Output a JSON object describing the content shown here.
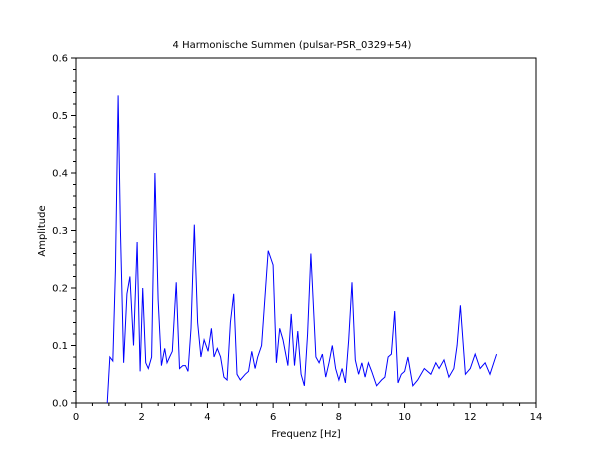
{
  "chart_data": {
    "type": "line",
    "title": "4 Harmonische Summen (pulsar-PSR_0329+54)",
    "xlabel": "Frequenz [Hz]",
    "ylabel": "Amplitude",
    "xlim": [
      0,
      14
    ],
    "ylim": [
      0,
      0.6
    ],
    "xticks": [
      "0",
      "2",
      "4",
      "6",
      "8",
      "10",
      "12",
      "14"
    ],
    "yticks": [
      "0.0",
      "0.1",
      "0.2",
      "0.3",
      "0.4",
      "0.5",
      "0.6"
    ],
    "grid": false,
    "line_color": "#0000ff",
    "series": [
      {
        "x": [
          0.95,
          1.03,
          1.12,
          1.2,
          1.28,
          1.35,
          1.45,
          1.55,
          1.64,
          1.75,
          1.86,
          1.95,
          2.03,
          2.12,
          2.2,
          2.3,
          2.4,
          2.5,
          2.6,
          2.7,
          2.77,
          2.85,
          2.93,
          3.05,
          3.15,
          3.25,
          3.33,
          3.41,
          3.5,
          3.6,
          3.7,
          3.8,
          3.9,
          4.02,
          4.12,
          4.2,
          4.3,
          4.4,
          4.5,
          4.6,
          4.7,
          4.8,
          4.9,
          5.0,
          5.15,
          5.25,
          5.35,
          5.45,
          5.53,
          5.65,
          5.85,
          6.0,
          6.1,
          6.2,
          6.3,
          6.45,
          6.55,
          6.65,
          6.75,
          6.85,
          6.95,
          7.05,
          7.15,
          7.3,
          7.4,
          7.5,
          7.6,
          7.7,
          7.8,
          7.9,
          8.0,
          8.1,
          8.2,
          8.3,
          8.4,
          8.5,
          8.6,
          8.7,
          8.8,
          8.9,
          9.0,
          9.15,
          9.3,
          9.4,
          9.5,
          9.6,
          9.7,
          9.8,
          9.9,
          10.0,
          10.1,
          10.25,
          10.4,
          10.6,
          10.8,
          10.95,
          11.05,
          11.2,
          11.35,
          11.5,
          11.6,
          11.7,
          11.85,
          12.0,
          12.15,
          12.3,
          12.45,
          12.6,
          12.8
        ],
        "y": [
          0.0,
          0.08,
          0.073,
          0.23,
          0.535,
          0.3,
          0.07,
          0.19,
          0.22,
          0.1,
          0.28,
          0.055,
          0.2,
          0.07,
          0.06,
          0.08,
          0.4,
          0.18,
          0.065,
          0.095,
          0.07,
          0.08,
          0.09,
          0.21,
          0.06,
          0.065,
          0.065,
          0.055,
          0.13,
          0.31,
          0.14,
          0.08,
          0.11,
          0.09,
          0.13,
          0.08,
          0.095,
          0.08,
          0.045,
          0.04,
          0.14,
          0.19,
          0.05,
          0.04,
          0.05,
          0.055,
          0.09,
          0.06,
          0.08,
          0.1,
          0.265,
          0.24,
          0.07,
          0.13,
          0.11,
          0.065,
          0.155,
          0.065,
          0.125,
          0.05,
          0.03,
          0.12,
          0.26,
          0.08,
          0.07,
          0.085,
          0.045,
          0.07,
          0.1,
          0.06,
          0.04,
          0.06,
          0.035,
          0.11,
          0.21,
          0.075,
          0.05,
          0.07,
          0.045,
          0.07,
          0.055,
          0.03,
          0.04,
          0.045,
          0.08,
          0.085,
          0.16,
          0.035,
          0.05,
          0.055,
          0.08,
          0.03,
          0.04,
          0.06,
          0.05,
          0.07,
          0.06,
          0.075,
          0.045,
          0.06,
          0.1,
          0.17,
          0.05,
          0.06,
          0.085,
          0.06,
          0.07,
          0.05,
          0.085
        ]
      }
    ]
  }
}
